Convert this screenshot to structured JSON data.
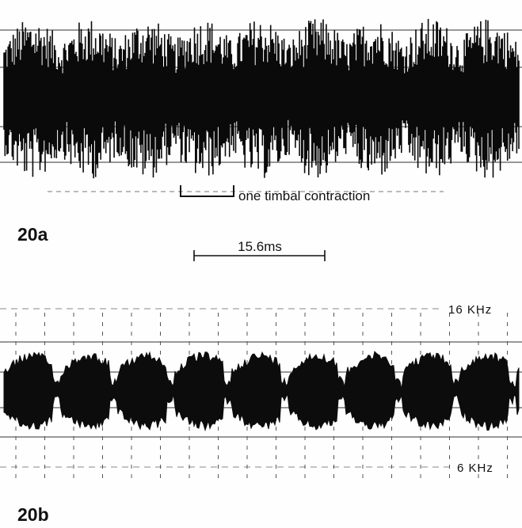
{
  "panel_a": {
    "annotation": "one timbal contraction",
    "label": "20a",
    "scale_bar": "15.6ms"
  },
  "panel_b": {
    "upper_frequency": "16 KHz",
    "lower_frequency": "6 KHz",
    "label": "20b"
  }
}
